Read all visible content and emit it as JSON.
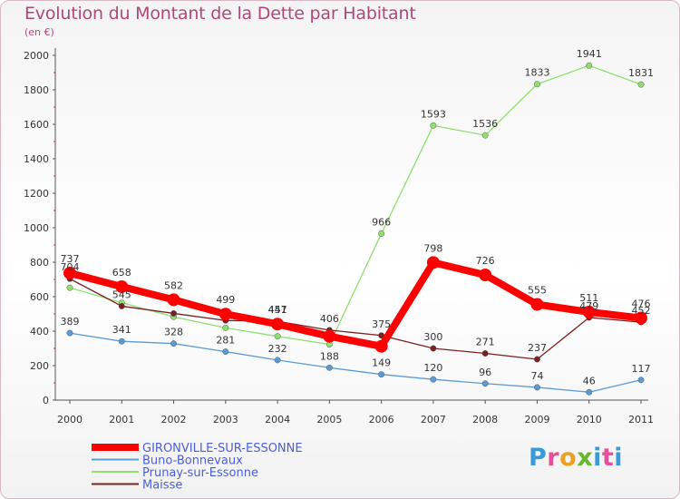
{
  "chart_data": {
    "type": "line",
    "title": "Evolution du Montant de la Dette par Habitant",
    "subtitle": "(en €)",
    "x": [
      "2000",
      "2001",
      "2002",
      "2003",
      "2004",
      "2005",
      "2006",
      "2007",
      "2008",
      "2009",
      "2010",
      "2011"
    ],
    "ylim": [
      0,
      2000
    ],
    "yticks": [
      0,
      200,
      400,
      600,
      800,
      1000,
      1200,
      1400,
      1600,
      1800,
      2000
    ],
    "grid": false,
    "legend_position": "bottom-left",
    "series": [
      {
        "name": "GIRONVILLE-SUR-ESSONNE",
        "color": "#ff0000",
        "values": [
          737,
          658,
          582,
          499,
          441,
          370,
          312,
          798,
          726,
          555,
          511,
          476
        ],
        "labels": [
          "737",
          "658",
          "582",
          "499",
          "441",
          "",
          "",
          "798",
          "726",
          "555",
          "511",
          "476"
        ],
        "emphasis": true
      },
      {
        "name": "Buno-Bonnevaux",
        "color": "#5b9bd5",
        "values": [
          389,
          341,
          328,
          281,
          232,
          188,
          149,
          120,
          96,
          74,
          46,
          117
        ],
        "labels": [
          "389",
          "341",
          "328",
          "281",
          "232",
          "188",
          "149",
          "120",
          "96",
          "74",
          "46",
          "117"
        ]
      },
      {
        "name": "Prunay-sur-Essonne",
        "color": "#90e070",
        "values": [
          652,
          565,
          483,
          419,
          370,
          323,
          966,
          1593,
          1536,
          1833,
          1941,
          1831
        ],
        "labels": [
          "",
          "",
          "",
          "",
          "",
          "",
          "966",
          "1593",
          "1536",
          "1833",
          "1941",
          "1831"
        ]
      },
      {
        "name": "Maisse",
        "color": "#7a2020",
        "values": [
          704,
          545,
          503,
          462,
          457,
          406,
          375,
          300,
          271,
          237,
          479,
          452
        ],
        "labels": [
          "704",
          "545",
          "",
          "",
          "457",
          "406",
          "375",
          "300",
          "271",
          "237",
          "479",
          "452"
        ]
      }
    ]
  },
  "logo": {
    "p": "P",
    "r": "r",
    "o": "o",
    "x": "x",
    "i": "i",
    "t": "t",
    "i2": "i"
  }
}
